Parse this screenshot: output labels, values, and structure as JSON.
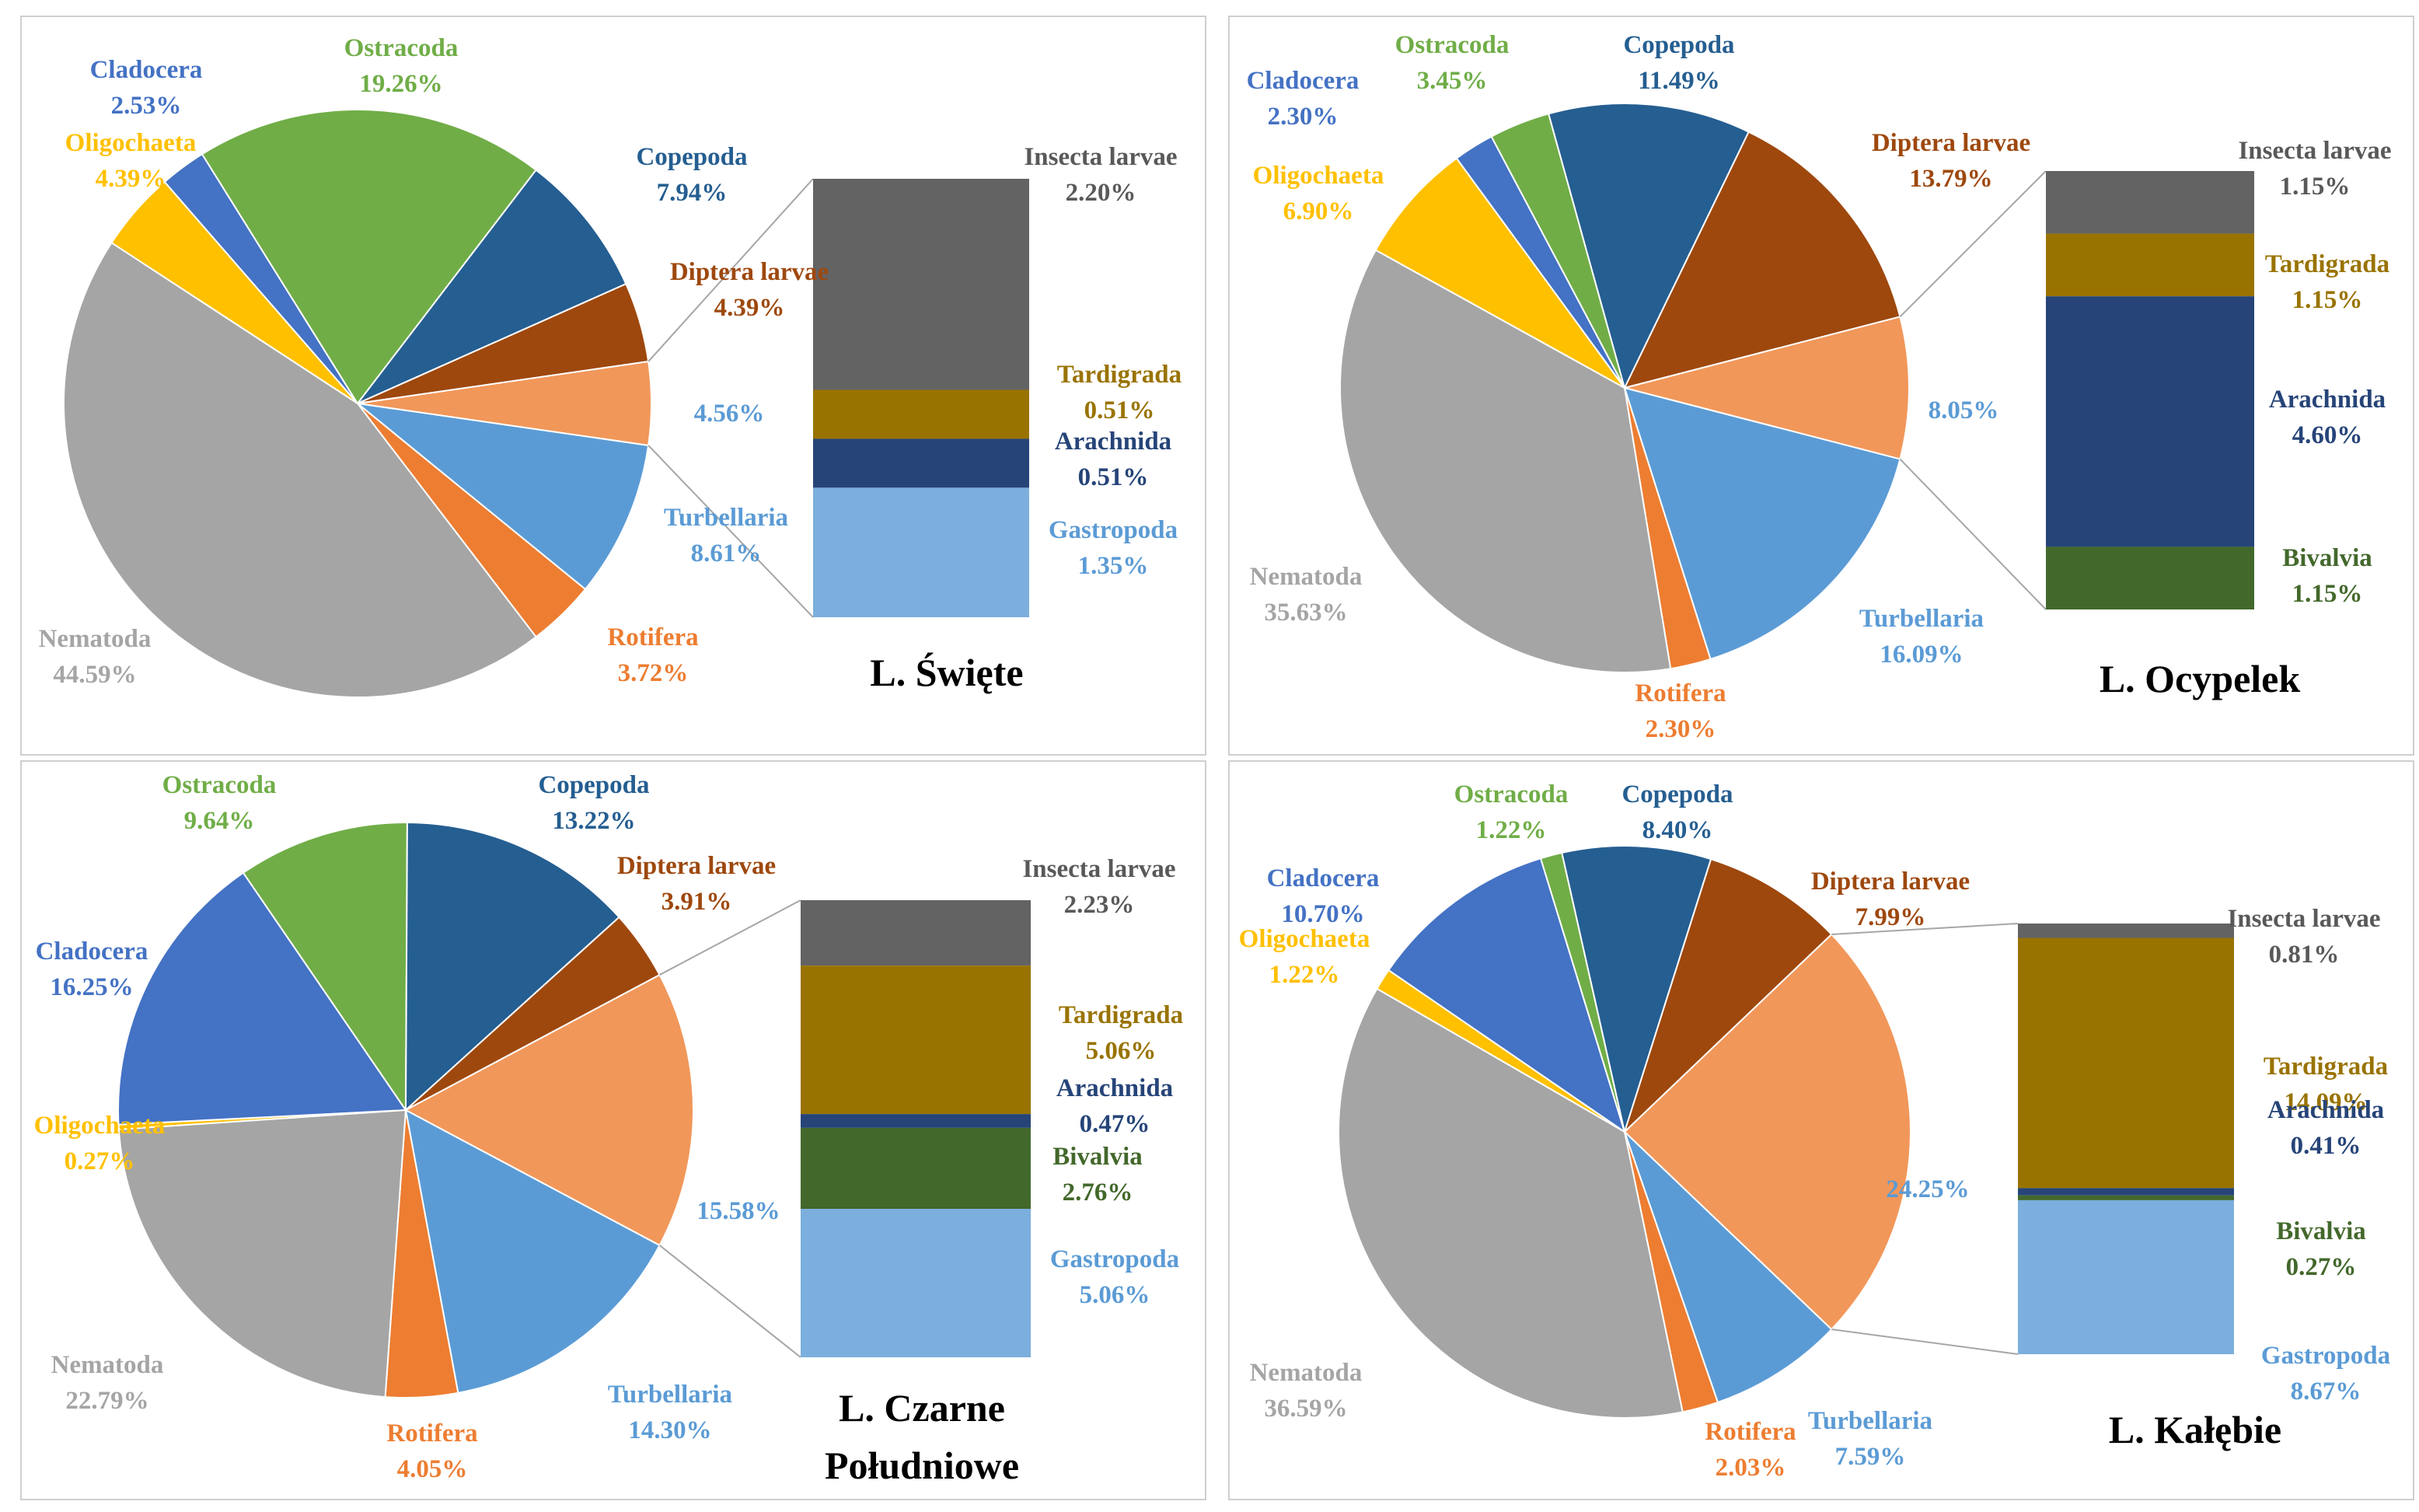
{
  "colors": {
    "Cladocera": "#4472c4",
    "Ostracoda": "#70ad47",
    "Copepoda": "#255e91",
    "Diptera larvae": "#9e480e",
    "Other": "#f1975a",
    "Turbellaria": "#5b9bd5",
    "Rotifera": "#ed7d31",
    "Nematoda": "#a5a5a5",
    "Oligochaeta": "#ffc000",
    "Insecta larvae": "#636363",
    "Tardigrada": "#997300",
    "Arachnida": "#264478",
    "Bivalvia": "#43682b",
    "Gastropoda": "#7cafdd"
  },
  "chart_data": [
    {
      "type": "bar-of-pie",
      "title": "L. Święte",
      "slices": [
        {
          "name": "Oligochaeta",
          "label": "Oligochaeta",
          "pct": "4.39%",
          "value": 4.39
        },
        {
          "name": "Cladocera",
          "label": "Cladocera",
          "pct": "2.53%",
          "value": 2.53
        },
        {
          "name": "Ostracoda",
          "label": "Ostracoda",
          "pct": "19.26%",
          "value": 19.26
        },
        {
          "name": "Copepoda",
          "label": "Copepoda",
          "pct": "7.94%",
          "value": 7.94
        },
        {
          "name": "Diptera larvae",
          "label": "Diptera larvae",
          "pct": "4.39%",
          "value": 4.39
        },
        {
          "name": "Other",
          "label": "",
          "pct": "4.56%",
          "value": 4.56
        },
        {
          "name": "Turbellaria",
          "label": "Turbellaria",
          "pct": "8.61%",
          "value": 8.61
        },
        {
          "name": "Rotifera",
          "label": "Rotifera",
          "pct": "3.72%",
          "value": 3.72
        },
        {
          "name": "Nematoda",
          "label": "Nematoda",
          "pct": "44.59%",
          "value": 44.59
        }
      ],
      "bar": [
        {
          "name": "Insecta larvae",
          "label": "Insecta larvae",
          "pct": "2.20%",
          "value": 2.2
        },
        {
          "name": "Tardigrada",
          "label": "Tardigrada",
          "pct": "0.51%",
          "value": 0.51
        },
        {
          "name": "Arachnida",
          "label": "Arachnida",
          "pct": "0.51%",
          "value": 0.51
        },
        {
          "name": "Gastropoda",
          "label": "Gastropoda",
          "pct": "1.35%",
          "value": 1.35
        }
      ]
    },
    {
      "type": "bar-of-pie",
      "title": "L. Ocypelek",
      "slices": [
        {
          "name": "Oligochaeta",
          "label": "Oligochaeta",
          "pct": "6.90%",
          "value": 6.9
        },
        {
          "name": "Cladocera",
          "label": "Cladocera",
          "pct": "2.30%",
          "value": 2.3
        },
        {
          "name": "Ostracoda",
          "label": "Ostracoda",
          "pct": "3.45%",
          "value": 3.45
        },
        {
          "name": "Copepoda",
          "label": "Copepoda",
          "pct": "11.49%",
          "value": 11.49
        },
        {
          "name": "Diptera larvae",
          "label": "Diptera larvae",
          "pct": "13.79%",
          "value": 13.79
        },
        {
          "name": "Other",
          "label": "",
          "pct": "8.05%",
          "value": 8.05
        },
        {
          "name": "Turbellaria",
          "label": "Turbellaria",
          "pct": "16.09%",
          "value": 16.09
        },
        {
          "name": "Rotifera",
          "label": "Rotifera",
          "pct": "2.30%",
          "value": 2.3
        },
        {
          "name": "Nematoda",
          "label": "Nematoda",
          "pct": "35.63%",
          "value": 35.63
        }
      ],
      "bar": [
        {
          "name": "Insecta larvae",
          "label": "Insecta larvae",
          "pct": "1.15%",
          "value": 1.15
        },
        {
          "name": "Tardigrada",
          "label": "Tardigrada",
          "pct": "1.15%",
          "value": 1.15
        },
        {
          "name": "Arachnida",
          "label": "Arachnida",
          "pct": "4.60%",
          "value": 4.6
        },
        {
          "name": "Bivalvia",
          "label": "Bivalvia",
          "pct": "1.15%",
          "value": 1.15
        }
      ]
    },
    {
      "type": "bar-of-pie",
      "title": "L. Czarne Południowe",
      "title_lines": [
        "L. Czarne",
        "Południowe"
      ],
      "slices": [
        {
          "name": "Oligochaeta",
          "label": "Oligochaeta",
          "pct": "0.27%",
          "value": 0.27
        },
        {
          "name": "Cladocera",
          "label": "Cladocera",
          "pct": "16.25%",
          "value": 16.25
        },
        {
          "name": "Ostracoda",
          "label": "Ostracoda",
          "pct": "9.64%",
          "value": 9.64
        },
        {
          "name": "Copepoda",
          "label": "Copepoda",
          "pct": "13.22%",
          "value": 13.22
        },
        {
          "name": "Diptera larvae",
          "label": "Diptera larvae",
          "pct": "3.91%",
          "value": 3.91
        },
        {
          "name": "Other",
          "label": "",
          "pct": "15.58%",
          "value": 15.58
        },
        {
          "name": "Turbellaria",
          "label": "Turbellaria",
          "pct": "14.30%",
          "value": 14.3
        },
        {
          "name": "Rotifera",
          "label": "Rotifera",
          "pct": "4.05%",
          "value": 4.05
        },
        {
          "name": "Nematoda",
          "label": "Nematoda",
          "pct": "22.79%",
          "value": 22.79
        }
      ],
      "bar": [
        {
          "name": "Insecta larvae",
          "label": "Insecta larvae",
          "pct": "2.23%",
          "value": 2.23
        },
        {
          "name": "Tardigrada",
          "label": "Tardigrada",
          "pct": "5.06%",
          "value": 5.06
        },
        {
          "name": "Arachnida",
          "label": "Arachnida",
          "pct": "0.47%",
          "value": 0.47
        },
        {
          "name": "Bivalvia",
          "label": "Bivalvia",
          "pct": "2.76%",
          "value": 2.76
        },
        {
          "name": "Gastropoda",
          "label": "Gastropoda",
          "pct": "5.06%",
          "value": 5.06
        }
      ]
    },
    {
      "type": "bar-of-pie",
      "title": "L. Kałębie",
      "slices": [
        {
          "name": "Oligochaeta",
          "label": "Oligochaeta",
          "pct": "1.22%",
          "value": 1.22
        },
        {
          "name": "Cladocera",
          "label": "Cladocera",
          "pct": "10.70%",
          "value": 10.7
        },
        {
          "name": "Ostracoda",
          "label": "Ostracoda",
          "pct": "1.22%",
          "value": 1.22
        },
        {
          "name": "Copepoda",
          "label": "Copepoda",
          "pct": "8.40%",
          "value": 8.4
        },
        {
          "name": "Diptera larvae",
          "label": "Diptera larvae",
          "pct": "7.99%",
          "value": 7.99
        },
        {
          "name": "Other",
          "label": "",
          "pct": "24.25%",
          "value": 24.25
        },
        {
          "name": "Turbellaria",
          "label": "Turbellaria",
          "pct": "7.59%",
          "value": 7.59
        },
        {
          "name": "Rotifera",
          "label": "Rotifera",
          "pct": "2.03%",
          "value": 2.03
        },
        {
          "name": "Nematoda",
          "label": "Nematoda",
          "pct": "36.59%",
          "value": 36.59
        }
      ],
      "bar": [
        {
          "name": "Insecta larvae",
          "label": "Insecta larvae",
          "pct": "0.81%",
          "value": 0.81
        },
        {
          "name": "Tardigrada",
          "label": "Tardigrada",
          "pct": "14.09%",
          "value": 14.09
        },
        {
          "name": "Arachnida",
          "label": "Arachnida",
          "pct": "0.41%",
          "value": 0.41
        },
        {
          "name": "Bivalvia",
          "label": "Bivalvia",
          "pct": "0.27%",
          "value": 0.27
        },
        {
          "name": "Gastropoda",
          "label": "Gastropoda",
          "pct": "8.67%",
          "value": 8.67
        }
      ]
    }
  ]
}
